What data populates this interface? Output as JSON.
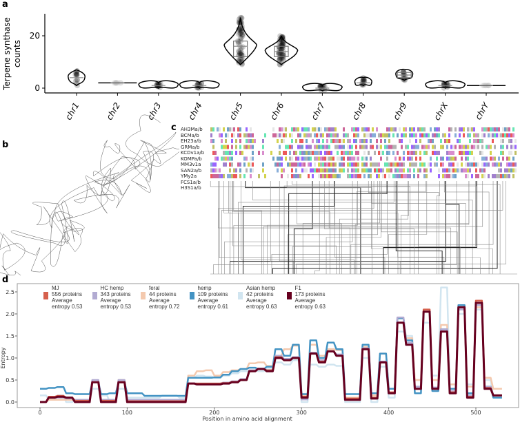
{
  "panels": {
    "a": "a",
    "b": "b",
    "c": "c",
    "d": "d"
  },
  "chart_data": [
    {
      "panel": "a",
      "type": "violin",
      "ylabel": "Terpene synthase counts",
      "yticks": [
        0,
        20
      ],
      "ylim": [
        -1,
        28
      ],
      "categories": [
        "chr1",
        "chr2",
        "chr3",
        "chr4",
        "chr5",
        "chr6",
        "chr7",
        "chr8",
        "chr9",
        "chrX",
        "chrY"
      ],
      "stats": [
        {
          "min": 1,
          "q1": 4,
          "median": 4,
          "q3": 4,
          "max": 7
        },
        {
          "min": 2,
          "q1": 2,
          "median": 2,
          "q3": 2,
          "max": 2
        },
        {
          "min": 0,
          "q1": 1,
          "median": 1,
          "q3": 1,
          "max": 2
        },
        {
          "min": 0,
          "q1": 1,
          "median": 1,
          "q3": 1,
          "max": 2
        },
        {
          "min": 9,
          "q1": 12,
          "median": 16,
          "q3": 18,
          "max": 27
        },
        {
          "min": 9,
          "q1": 12,
          "median": 14,
          "q3": 16,
          "max": 20
        },
        {
          "min": -1,
          "q1": 0,
          "median": 0,
          "q3": 0,
          "max": 1
        },
        {
          "min": 1,
          "q1": 2,
          "median": 2,
          "q3": 2,
          "max": 4
        },
        {
          "min": 3,
          "q1": 4,
          "median": 5,
          "q3": 6,
          "max": 7
        },
        {
          "min": 0,
          "q1": 1,
          "median": 1,
          "q3": 1,
          "max": 2
        },
        {
          "min": 1,
          "q1": 1,
          "median": 1,
          "q3": 1,
          "max": 1
        }
      ]
    },
    {
      "panel": "c",
      "type": "heatmap",
      "row_labels": [
        "AH3Ma/b",
        "BCMa/b",
        "EH23a/b",
        "GRMa/b",
        "KCDv1a/b",
        "KOMPa/b",
        "MM3v1a",
        "SAN2a/b",
        "YMy2a",
        "FCS1a/b",
        "H3S1a/b"
      ]
    },
    {
      "panel": "d",
      "type": "line",
      "xlabel": "Position in amino acid alignment",
      "ylabel": "Entropy",
      "xlim": [
        -20,
        555
      ],
      "ylim": [
        -0.1,
        2.65
      ],
      "xticks": [
        0,
        100,
        200,
        300,
        400,
        500
      ],
      "yticks": [
        "0.0",
        "0.5",
        "1.0",
        "1.5",
        "2.0",
        "2.5"
      ],
      "legend_placement": "top",
      "x": [
        0,
        10,
        20,
        30,
        40,
        50,
        60,
        70,
        80,
        90,
        100,
        110,
        120,
        130,
        140,
        150,
        160,
        170,
        180,
        190,
        200,
        210,
        220,
        230,
        240,
        250,
        260,
        270,
        280,
        290,
        300,
        310,
        320,
        330,
        340,
        350,
        360,
        370,
        380,
        390,
        400,
        410,
        420,
        430,
        440,
        450,
        460,
        470,
        480,
        490,
        500,
        510,
        520
      ],
      "series": [
        {
          "name": "MJ",
          "count": "556 proteins",
          "entropy": "Average entropy 0.53",
          "color": "#d6604d",
          "values": [
            0,
            0.12,
            0.14,
            0.1,
            0.03,
            0.03,
            0.45,
            0.03,
            0.03,
            0.45,
            0.02,
            0.02,
            0.02,
            0.02,
            0.02,
            0.02,
            0.02,
            0.42,
            0.42,
            0.42,
            0.42,
            0.43,
            0.46,
            0.5,
            0.7,
            0.75,
            0.72,
            1.02,
            0.95,
            1.0,
            0.12,
            1.1,
            0.92,
            1.15,
            1.05,
            0.08,
            0.08,
            1.2,
            0.1,
            0.9,
            0.22,
            1.8,
            1.3,
            0.3,
            2.1,
            0.3,
            1.6,
            0.22,
            2.15,
            0.12,
            2.3,
            0.32,
            0.15
          ]
        },
        {
          "name": "HC hemp",
          "count": "343 proteins",
          "entropy": "Average entropy 0.53",
          "color": "#b2abd2",
          "values": [
            0,
            0.1,
            0.1,
            0.08,
            0.05,
            0.05,
            0.5,
            0.05,
            0.05,
            0.5,
            0.05,
            0.05,
            0.05,
            0.05,
            0.05,
            0.05,
            0.05,
            0.42,
            0.42,
            0.42,
            0.42,
            0.44,
            0.47,
            0.52,
            0.72,
            0.76,
            0.72,
            1.05,
            0.98,
            1.02,
            0.06,
            1.12,
            0.95,
            1.15,
            1.08,
            0.05,
            0.05,
            1.22,
            0.08,
            0.92,
            0.2,
            1.92,
            1.35,
            0.35,
            2.05,
            0.33,
            1.65,
            0.25,
            2.1,
            0.15,
            2.2,
            0.35,
            0.15
          ]
        },
        {
          "name": "feral",
          "count": "44 proteins",
          "entropy": "Average entropy 0.72",
          "color": "#f4c9ae",
          "values": [
            0,
            0.05,
            0.05,
            0.05,
            0.05,
            0.05,
            0.45,
            0.05,
            0.05,
            0.5,
            0.05,
            0.05,
            0.05,
            0.05,
            0.05,
            0.05,
            0.05,
            0.6,
            0.7,
            0.72,
            0.6,
            0.68,
            0.72,
            0.75,
            0.88,
            0.9,
            0.82,
            1.05,
            1.2,
            1.28,
            0.15,
            1.3,
            1.05,
            1.2,
            1.18,
            0.1,
            0.1,
            1.25,
            0.15,
            1.1,
            0.3,
            1.9,
            1.45,
            0.5,
            2.1,
            0.5,
            1.75,
            0.4,
            2.2,
            0.35,
            2.15,
            0.55,
            0.3
          ]
        },
        {
          "name": "hemp",
          "count": "109 proteins",
          "entropy": "Average entropy 0.61",
          "color": "#4393c3",
          "values": [
            0.3,
            0.32,
            0.34,
            0.2,
            0.18,
            0.18,
            0.45,
            0.18,
            0.2,
            0.45,
            0.2,
            0.2,
            0.14,
            0.14,
            0.14,
            0.14,
            0.14,
            0.55,
            0.55,
            0.55,
            0.56,
            0.62,
            0.7,
            0.75,
            0.78,
            0.75,
            0.8,
            1.2,
            1.05,
            1.3,
            0.18,
            1.4,
            1.0,
            1.35,
            1.2,
            0.18,
            0.18,
            1.3,
            0.2,
            1.1,
            0.3,
            1.9,
            1.4,
            0.2,
            2.05,
            0.25,
            1.65,
            0.3,
            2.2,
            0.2,
            2.2,
            0.35,
            0.1
          ]
        },
        {
          "name": "Asian hemp",
          "count": "42 proteins",
          "entropy": "Average entropy 0.63",
          "color": "#d1e5f0",
          "values": [
            0.15,
            0.05,
            0.15,
            0.0,
            0.05,
            0.05,
            0.3,
            0.15,
            0.0,
            0.3,
            0.1,
            0.1,
            0.1,
            0.1,
            0.15,
            0.15,
            0.1,
            0.55,
            0.6,
            0.58,
            0.55,
            0.6,
            0.65,
            0.7,
            0.72,
            0.7,
            0.75,
            0.9,
            0.85,
            0.95,
            0.0,
            0.85,
            0.8,
            0.85,
            0.82,
            0.0,
            0.0,
            1.0,
            0.0,
            0.8,
            0.1,
            1.6,
            1.5,
            0.5,
            1.8,
            0.6,
            2.6,
            0.4,
            2.0,
            0.4,
            2.1,
            0.5,
            0.1
          ]
        },
        {
          "name": "F1",
          "count": "173 proteins",
          "entropy": "Average entropy 0.63",
          "color": "#67001f",
          "values": [
            0,
            0.1,
            0.12,
            0.1,
            0,
            0,
            0.45,
            0,
            0,
            0.45,
            0,
            0,
            0,
            0,
            0,
            0,
            0,
            0.42,
            0.4,
            0.4,
            0.4,
            0.42,
            0.45,
            0.5,
            0.7,
            0.75,
            0.7,
            1.0,
            0.95,
            1.0,
            0.1,
            1.1,
            0.9,
            1.15,
            1.05,
            0.05,
            0.05,
            1.2,
            0.08,
            0.9,
            0.2,
            1.8,
            1.3,
            0.3,
            2.05,
            0.3,
            1.6,
            0.2,
            2.15,
            0.1,
            2.25,
            0.3,
            0.15
          ]
        }
      ]
    }
  ]
}
